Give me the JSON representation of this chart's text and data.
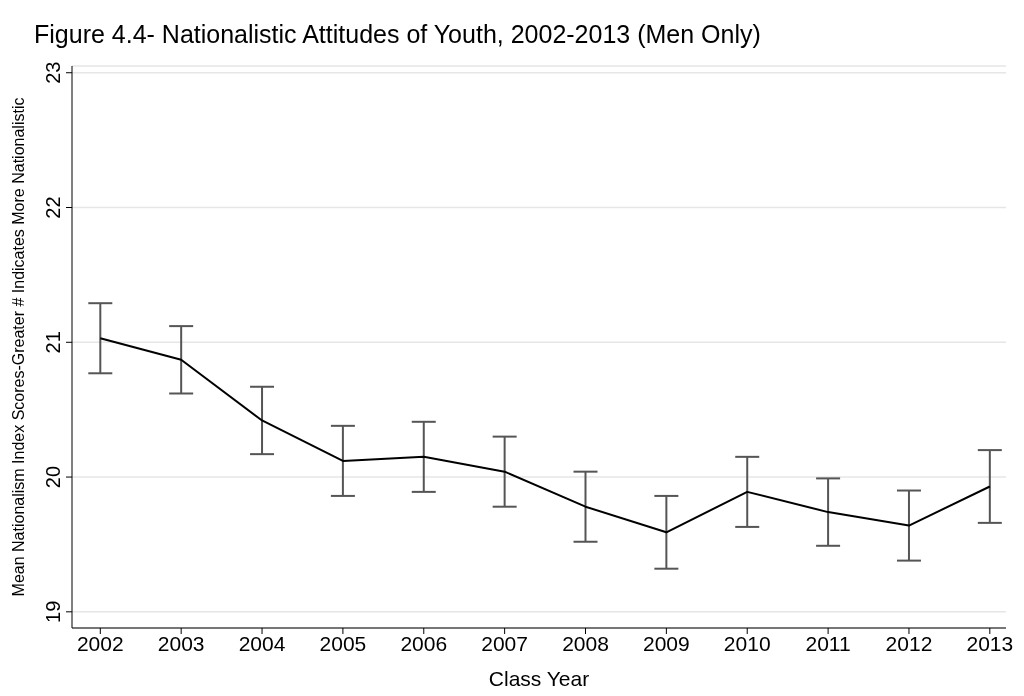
{
  "chart_data": {
    "type": "line",
    "title": "Figure 4.4- Nationalistic Attitudes of Youth, 2002-2013 (Men Only)",
    "xlabel": "Class Year",
    "ylabel": "Mean Nationalism Index Scores-Greater # Indicates More Nationalistic",
    "x": [
      2002,
      2003,
      2004,
      2005,
      2006,
      2007,
      2008,
      2009,
      2010,
      2011,
      2012,
      2013
    ],
    "series": [
      {
        "color": "#000000",
        "values": [
          21.03,
          20.87,
          20.42,
          20.12,
          20.15,
          20.04,
          19.78,
          19.59,
          19.89,
          19.74,
          19.64,
          19.93
        ],
        "errors": [
          0.26,
          0.25,
          0.25,
          0.26,
          0.26,
          0.26,
          0.26,
          0.27,
          0.26,
          0.25,
          0.26,
          0.27
        ]
      }
    ],
    "xlim": [
      2001.65,
      2013.2
    ],
    "xticks": [
      2002,
      2003,
      2004,
      2005,
      2006,
      2007,
      2008,
      2009,
      2010,
      2011,
      2012,
      2013
    ],
    "ylim": [
      18.88,
      23.05
    ],
    "yticks": [
      19,
      20,
      21,
      22,
      23
    ],
    "grid": "y",
    "marker": "none",
    "line_style": "solid",
    "legend": false
  }
}
